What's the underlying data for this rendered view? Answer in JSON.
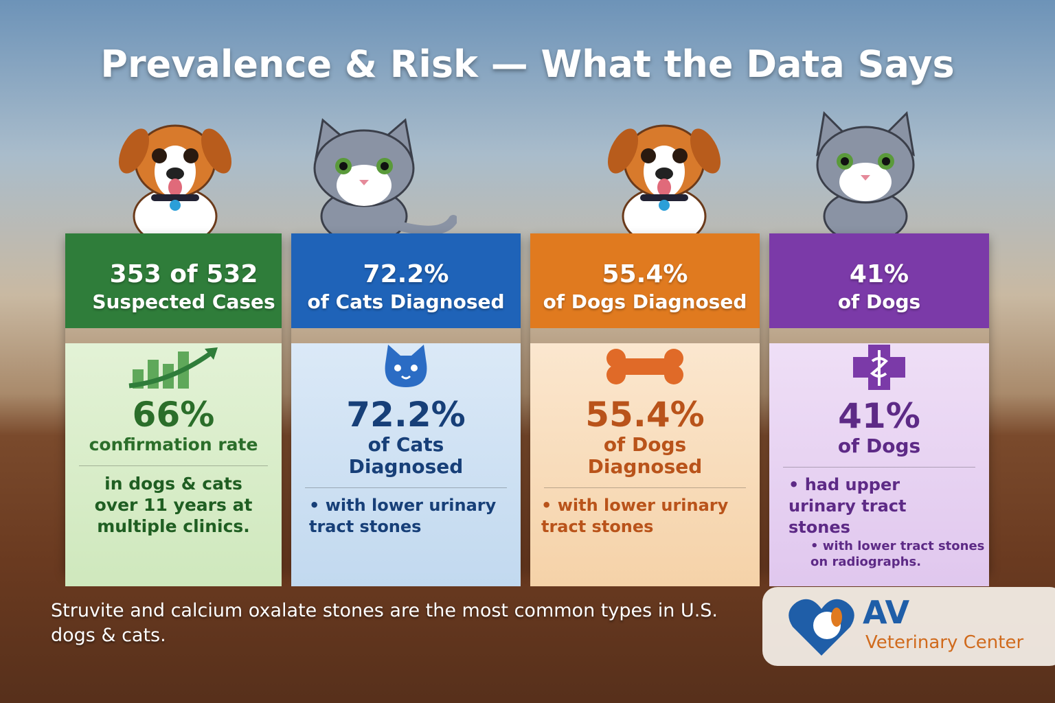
{
  "title": "Prevalence & Risk — What the Data Says",
  "cards": [
    {
      "header": [
        "353 of 532",
        "Suspected Cases"
      ],
      "value": "66%",
      "label": "confirmation rate",
      "notes": [
        "in dogs & cats over 11 years at multiple clinics."
      ]
    },
    {
      "header": [
        "72.2%",
        "of Cats Diagnosed"
      ],
      "value": "72.2%",
      "label": "of Cats Diagnosed",
      "notes": [
        "with lower urinary tract stones"
      ]
    },
    {
      "header": [
        "55.4%",
        "of Dogs Diagnosed"
      ],
      "value": "55.4%",
      "label": "of Dogs Diagnosed",
      "notes": [
        "with lower urinary tract stones"
      ]
    },
    {
      "header": [
        "41%",
        "of Dogs"
      ],
      "value": "41%",
      "label": "of Dogs",
      "notes": [
        "had upper urinary tract stones",
        "with lower tract stones on radiographs."
      ]
    }
  ],
  "footer": "Struvite  and calcium oxalate stones are the most common types in U.S. dogs & cats.",
  "logo": {
    "name": "AV",
    "subtitle": "Veterinary Center"
  }
}
